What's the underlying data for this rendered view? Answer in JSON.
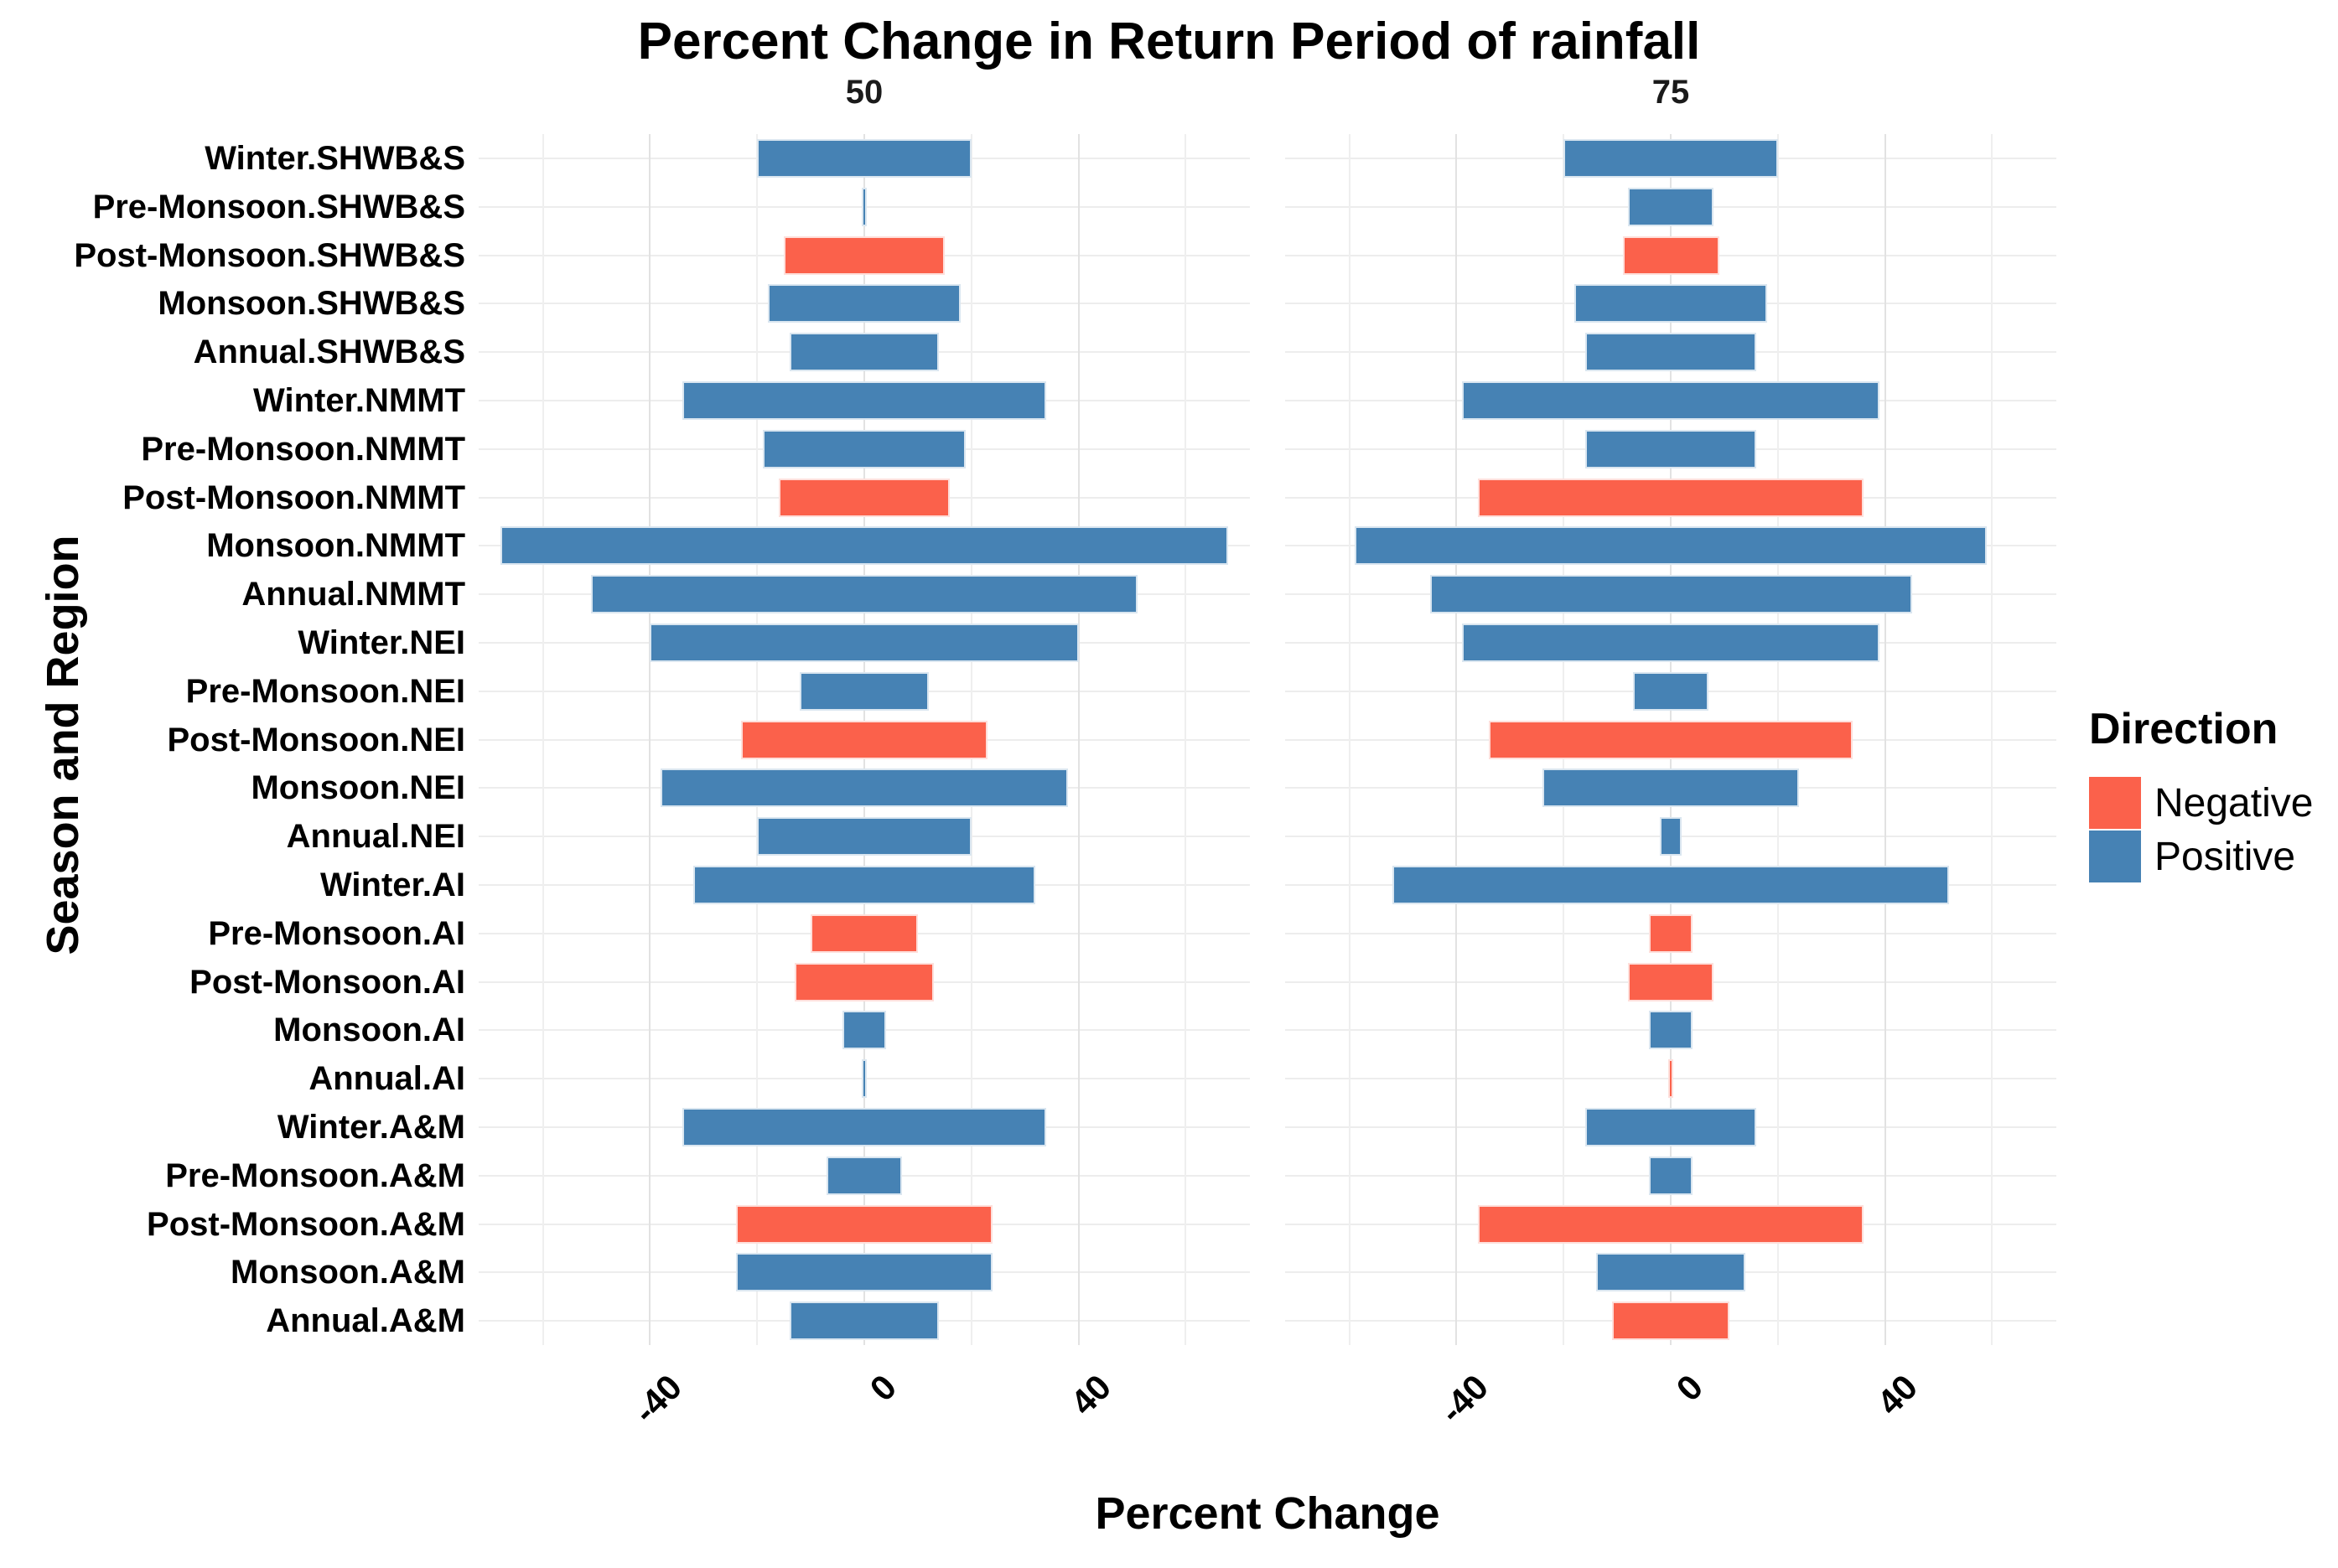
{
  "title": "Percent Change in Return Period of rainfall",
  "x_axis": {
    "label": "Percent Change",
    "ticks": [
      -40,
      0,
      40
    ],
    "minor_gridlines": [
      -60,
      -20,
      20,
      60
    ],
    "range": [
      -72,
      72
    ]
  },
  "y_axis": {
    "label": "Season and Region"
  },
  "legend": {
    "title": "Direction",
    "items": [
      {
        "label": "Negative",
        "color": "#FB604A"
      },
      {
        "label": "Positive",
        "color": "#4682B4"
      }
    ]
  },
  "colors": {
    "negative": "#FB614B",
    "positive": "#4682B4",
    "gridline_major": "#e2e2e2",
    "gridline_minor": "#efefef",
    "background": "#ffffff"
  },
  "chart_data": {
    "type": "bar",
    "orientation": "horizontal",
    "note": "Bars are drawn symmetric about 0; half-width equals |percent change|; sign shown by color (Negative=red, Positive=blue).",
    "title": "Percent Change in Return Period of rainfall",
    "xlabel": "Percent Change",
    "ylabel": "Season and Region",
    "xlim": [
      -72,
      72
    ],
    "grid": true,
    "legend_position": "right",
    "categories": [
      "Winter.SHWB&S",
      "Pre-Monsoon.SHWB&S",
      "Post-Monsoon.SHWB&S",
      "Monsoon.SHWB&S",
      "Annual.SHWB&S",
      "Winter.NMMT",
      "Pre-Monsoon.NMMT",
      "Post-Monsoon.NMMT",
      "Monsoon.NMMT",
      "Annual.NMMT",
      "Winter.NEI",
      "Pre-Monsoon.NEI",
      "Post-Monsoon.NEI",
      "Monsoon.NEI",
      "Annual.NEI",
      "Winter.AI",
      "Pre-Monsoon.AI",
      "Post-Monsoon.AI",
      "Monsoon.AI",
      "Annual.AI",
      "Winter.A&M",
      "Pre-Monsoon.A&M",
      "Post-Monsoon.A&M",
      "Monsoon.A&M",
      "Annual.A&M"
    ],
    "series": [
      {
        "name": "50",
        "values": [
          20,
          0.5,
          -15,
          18,
          14,
          34,
          19,
          -16,
          68,
          51,
          40,
          12,
          -23,
          38,
          20,
          32,
          -10,
          -13,
          4,
          0.4,
          34,
          7,
          -24,
          24,
          14
        ]
      },
      {
        "name": "75",
        "values": [
          20,
          8,
          -9,
          18,
          16,
          39,
          16,
          -36,
          59,
          45,
          39,
          7,
          -34,
          24,
          2,
          52,
          -4,
          -8,
          4,
          -0.4,
          16,
          4,
          -36,
          14,
          -11
        ]
      }
    ]
  }
}
